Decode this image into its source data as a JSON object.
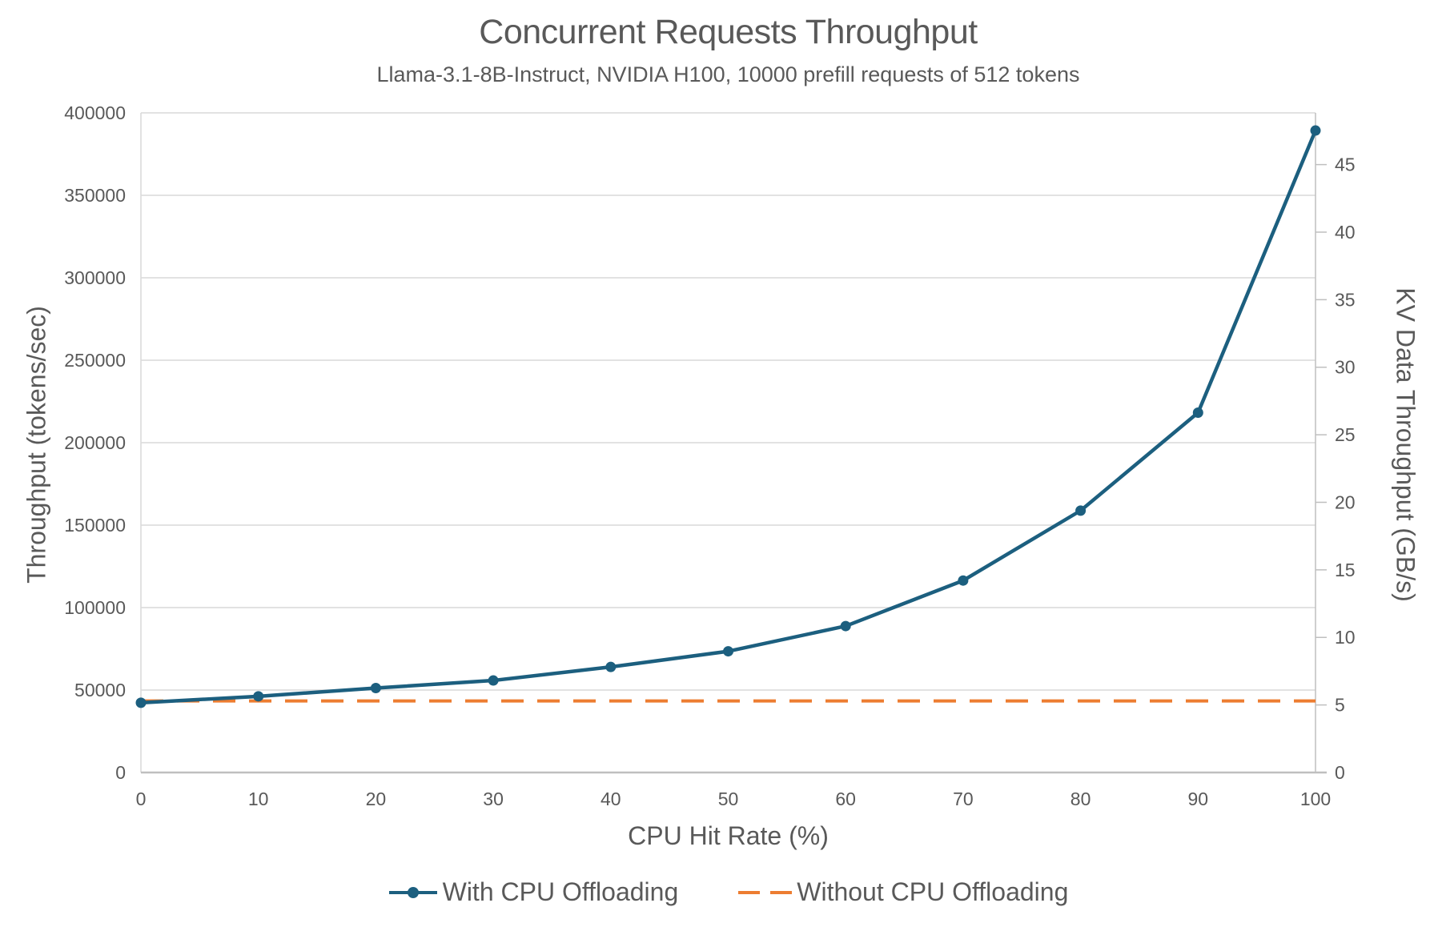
{
  "chart_data": {
    "type": "line",
    "title": "Concurrent Requests Throughput",
    "subtitle": "Llama-3.1-8B-Instruct, NVIDIA H100, 10000 prefill requests of 512 tokens",
    "xlabel": "CPU Hit Rate (%)",
    "ylabel": "Throughput (tokens/sec)",
    "y2label": "KV Data Throughput (GB/s)",
    "x": [
      0,
      10,
      20,
      30,
      40,
      50,
      60,
      70,
      80,
      90,
      100
    ],
    "x_ticks": [
      0,
      10,
      20,
      30,
      40,
      50,
      60,
      70,
      80,
      90,
      100
    ],
    "xlim": [
      0,
      100
    ],
    "ylim": [
      0,
      400000
    ],
    "y_ticks": [
      0,
      50000,
      100000,
      150000,
      200000,
      250000,
      300000,
      350000,
      400000
    ],
    "y2lim": [
      0,
      48.828125
    ],
    "y2_ticks": [
      0,
      5,
      10,
      15,
      20,
      25,
      30,
      35,
      40,
      45
    ],
    "y2_tokens_per_unit": 8192,
    "grid": "horizontal",
    "legend_position": "bottom",
    "series": [
      {
        "name": "With CPU Offloading",
        "style": "solid-line-with-markers",
        "color": "#1C5F7F",
        "values": [
          42300,
          46200,
          51200,
          55800,
          64000,
          73500,
          88800,
          116400,
          158800,
          218200,
          389300
        ]
      },
      {
        "name": "Without CPU Offloading",
        "style": "dashed-line",
        "color": "#ED7D31",
        "values": [
          43400,
          43400,
          43400,
          43400,
          43400,
          43400,
          43400,
          43400,
          43400,
          43400,
          43400
        ]
      }
    ]
  },
  "colors": {
    "text": "#595959",
    "gridline": "#D9D9D9",
    "axis_line": "#BFBFBF",
    "background": "#FFFFFF",
    "series_with_offloading": "#1C5F7F",
    "series_without_offloading": "#ED7D31"
  }
}
